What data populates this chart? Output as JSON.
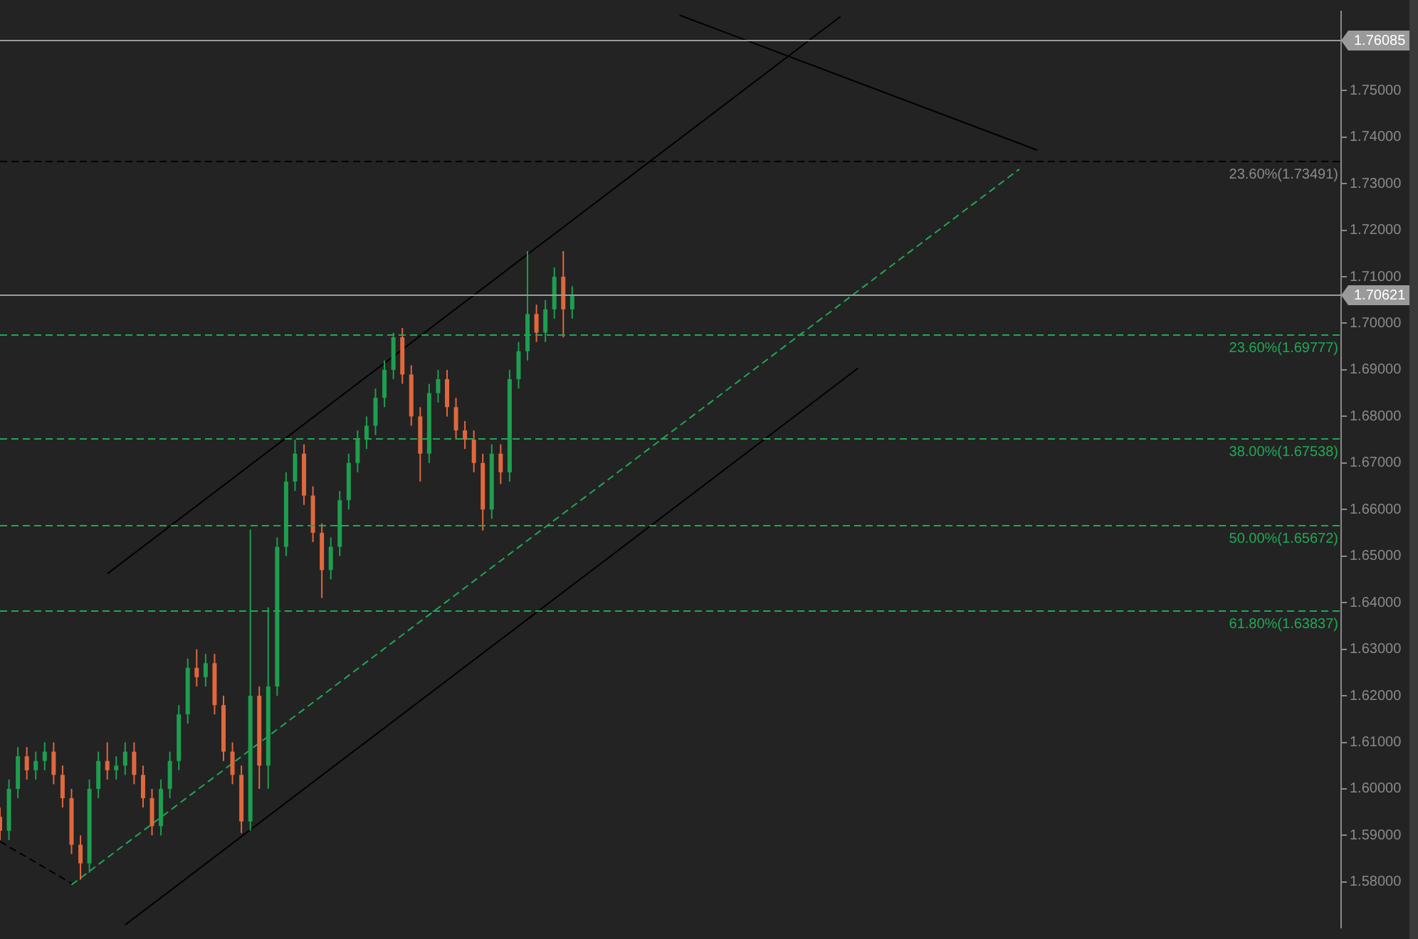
{
  "chart_data": {
    "type": "candlestick",
    "categories": [
      null,
      null,
      null,
      null,
      null,
      null,
      null,
      null,
      null,
      null,
      null,
      null,
      null,
      null,
      null,
      null,
      null,
      null,
      null,
      null,
      null,
      null,
      null,
      null,
      null,
      null,
      null,
      null,
      null,
      null,
      null,
      null,
      null,
      null,
      null,
      null,
      null,
      null,
      null,
      null,
      null,
      null,
      null,
      null,
      null,
      null,
      null,
      null,
      null,
      null,
      null,
      null,
      null,
      null,
      null,
      null,
      null,
      null,
      null,
      null,
      null,
      null,
      null,
      null,
      null,
      null,
      null,
      null,
      null,
      null,
      null,
      null,
      null,
      null,
      null,
      null,
      null,
      null,
      null,
      null,
      null,
      null,
      null,
      null,
      null,
      null,
      null,
      null,
      null,
      null,
      null,
      null,
      null,
      null,
      null,
      null,
      null,
      null,
      null,
      null,
      null,
      null,
      null,
      null,
      null,
      null,
      null,
      null,
      null,
      null,
      null,
      null,
      null,
      null,
      null,
      null,
      null,
      null,
      null,
      null,
      null,
      null,
      null,
      null,
      null,
      null,
      null,
      null,
      null,
      null,
      null,
      null,
      null,
      null,
      null,
      null,
      null,
      null,
      null,
      null,
      null,
      null,
      null,
      null,
      null,
      null,
      null,
      null,
      null,
      null,
      null
    ],
    "ohlc": [
      [
        1.594,
        1.596,
        1.589,
        1.591
      ],
      [
        1.591,
        1.602,
        1.589,
        1.6
      ],
      [
        1.6,
        1.609,
        1.598,
        1.607
      ],
      [
        1.607,
        1.609,
        1.602,
        1.604
      ],
      [
        1.604,
        1.608,
        1.602,
        1.606
      ],
      [
        1.606,
        1.61,
        1.604,
        1.608
      ],
      [
        1.608,
        1.61,
        1.601,
        1.603
      ],
      [
        1.603,
        1.605,
        1.596,
        1.598
      ],
      [
        1.598,
        1.6,
        1.586,
        1.588
      ],
      [
        1.588,
        1.59,
        1.5805,
        1.584
      ],
      [
        1.584,
        1.602,
        1.582,
        1.6
      ],
      [
        1.6,
        1.608,
        1.598,
        1.606
      ],
      [
        1.606,
        1.61,
        1.602,
        1.604
      ],
      [
        1.604,
        1.607,
        1.602,
        1.605
      ],
      [
        1.605,
        1.61,
        1.603,
        1.608
      ],
      [
        1.608,
        1.61,
        1.601,
        1.603
      ],
      [
        1.603,
        1.605,
        1.596,
        1.598
      ],
      [
        1.598,
        1.6,
        1.59,
        1.592
      ],
      [
        1.592,
        1.602,
        1.59,
        1.6
      ],
      [
        1.6,
        1.608,
        1.598,
        1.606
      ],
      [
        1.606,
        1.618,
        1.604,
        1.616
      ],
      [
        1.616,
        1.628,
        1.614,
        1.626
      ],
      [
        1.626,
        1.63,
        1.622,
        1.624
      ],
      [
        1.624,
        1.629,
        1.622,
        1.627
      ],
      [
        1.627,
        1.629,
        1.616,
        1.618
      ],
      [
        1.618,
        1.62,
        1.606,
        1.608
      ],
      [
        1.608,
        1.61,
        1.601,
        1.603
      ],
      [
        1.603,
        1.605,
        1.5905,
        1.593
      ],
      [
        1.593,
        1.6557,
        1.591,
        1.62
      ],
      [
        1.62,
        1.622,
        1.6,
        1.605
      ],
      [
        1.605,
        1.639,
        1.6,
        1.622
      ],
      [
        1.622,
        1.654,
        1.62,
        1.652
      ],
      [
        1.652,
        1.668,
        1.65,
        1.666
      ],
      [
        1.666,
        1.675,
        1.664,
        1.672
      ],
      [
        1.672,
        1.674,
        1.661,
        1.663
      ],
      [
        1.663,
        1.665,
        1.653,
        1.655
      ],
      [
        1.655,
        1.657,
        1.641,
        1.647
      ],
      [
        1.647,
        1.654,
        1.645,
        1.652
      ],
      [
        1.652,
        1.664,
        1.65,
        1.662
      ],
      [
        1.662,
        1.672,
        1.66,
        1.67
      ],
      [
        1.67,
        1.677,
        1.668,
        1.675
      ],
      [
        1.675,
        1.68,
        1.673,
        1.678
      ],
      [
        1.678,
        1.686,
        1.676,
        1.684
      ],
      [
        1.684,
        1.692,
        1.682,
        1.69
      ],
      [
        1.69,
        1.698,
        1.688,
        1.697
      ],
      [
        1.697,
        1.699,
        1.687,
        1.689
      ],
      [
        1.689,
        1.691,
        1.678,
        1.68
      ],
      [
        1.68,
        1.682,
        1.666,
        1.672
      ],
      [
        1.672,
        1.687,
        1.67,
        1.685
      ],
      [
        1.685,
        1.69,
        1.683,
        1.688
      ],
      [
        1.688,
        1.69,
        1.68,
        1.682
      ],
      [
        1.682,
        1.684,
        1.675,
        1.677
      ],
      [
        1.677,
        1.679,
        1.673,
        1.675
      ],
      [
        1.675,
        1.677,
        1.668,
        1.67
      ],
      [
        1.67,
        1.672,
        1.6555,
        1.66
      ],
      [
        1.66,
        1.674,
        1.658,
        1.672
      ],
      [
        1.672,
        1.674,
        1.6655,
        1.668
      ],
      [
        1.668,
        1.69,
        1.666,
        1.688
      ],
      [
        1.688,
        1.696,
        1.686,
        1.694
      ],
      [
        1.694,
        1.7155,
        1.692,
        1.702
      ],
      [
        1.702,
        1.704,
        1.696,
        1.698
      ],
      [
        1.698,
        1.705,
        1.696,
        1.703
      ],
      [
        1.703,
        1.712,
        1.701,
        1.71
      ],
      [
        1.71,
        1.7155,
        1.697,
        1.703
      ],
      [
        1.703,
        1.708,
        1.701,
        1.7062
      ],
      null,
      null,
      null,
      null,
      null,
      null,
      null,
      null,
      null,
      null,
      null,
      null,
      null,
      null,
      null,
      null,
      null,
      null,
      null,
      null,
      null,
      null,
      null,
      null,
      null,
      null,
      null,
      null,
      null,
      null,
      null,
      null,
      null,
      null,
      null,
      null,
      null,
      null,
      null,
      null,
      null,
      null,
      null,
      null,
      null,
      null,
      null,
      null,
      null,
      null,
      null,
      null,
      null,
      null,
      null,
      null,
      null,
      null,
      null,
      null,
      null,
      null,
      null,
      null,
      null,
      null,
      null,
      null,
      null,
      null,
      null,
      null,
      null,
      null,
      null,
      null,
      null,
      null,
      null,
      null,
      null,
      null,
      null,
      null,
      null,
      null
    ],
    "colors": [
      "#e0683c",
      "#1e9e4f",
      "#1e9e4f",
      "#e0683c",
      "#1e9e4f",
      "#1e9e4f",
      "#e0683c",
      "#e0683c",
      "#e0683c",
      "#e0683c",
      "#1e9e4f",
      "#1e9e4f",
      "#e0683c",
      "#1e9e4f",
      "#1e9e4f",
      "#e0683c",
      "#e0683c",
      "#e0683c",
      "#1e9e4f",
      "#1e9e4f",
      "#1e9e4f",
      "#1e9e4f",
      "#e0683c",
      "#1e9e4f",
      "#e0683c",
      "#e0683c",
      "#e0683c",
      "#e0683c",
      "#1e9e4f",
      "#e0683c",
      "#1e9e4f",
      "#1e9e4f",
      "#1e9e4f",
      "#1e9e4f",
      "#e0683c",
      "#e0683c",
      "#e0683c",
      "#1e9e4f",
      "#1e9e4f",
      "#1e9e4f",
      "#1e9e4f",
      "#1e9e4f",
      "#1e9e4f",
      "#1e9e4f",
      "#1e9e4f",
      "#e0683c",
      "#e0683c",
      "#e0683c",
      "#1e9e4f",
      "#1e9e4f",
      "#e0683c",
      "#e0683c",
      "#e0683c",
      "#e0683c",
      "#e0683c",
      "#1e9e4f",
      "#e0683c",
      "#1e9e4f",
      "#1e9e4f",
      "#1e9e4f",
      "#e0683c",
      "#1e9e4f",
      "#1e9e4f",
      "#e0683c",
      "#1e9e4f",
      null,
      null,
      null,
      null,
      null,
      null,
      null,
      null,
      null,
      null,
      null,
      null,
      null,
      null,
      null,
      null,
      null,
      null,
      null,
      null,
      null,
      null,
      null,
      null,
      null,
      null,
      null,
      null,
      null,
      null,
      null,
      null,
      null,
      null,
      null,
      null,
      null,
      null,
      null,
      null,
      null,
      null,
      null,
      null,
      null,
      null,
      null,
      null,
      null,
      null,
      null,
      null,
      null,
      null,
      null,
      null,
      null,
      null,
      null,
      null,
      null,
      null,
      null,
      null,
      null,
      null,
      null,
      null,
      null,
      null,
      null,
      null,
      null,
      null,
      null,
      null,
      null,
      null,
      null,
      null,
      null,
      null,
      null,
      null,
      null,
      null
    ],
    "series": [
      {
        "type": "line",
        "color": "#000000",
        "line_style": "solid",
        "values": [
          null,
          null,
          null,
          null,
          null,
          null,
          null,
          null,
          null,
          null,
          null,
          null,
          1.6462,
          null,
          null,
          null,
          null,
          null,
          null,
          null,
          null,
          null,
          null,
          null,
          null,
          null,
          null,
          null,
          null,
          null,
          null,
          null,
          null,
          null,
          null,
          null,
          null,
          null,
          null,
          null,
          null,
          null,
          null,
          null,
          null,
          null,
          null,
          null,
          null,
          null,
          null,
          null,
          null,
          null,
          null,
          null,
          null,
          null,
          null,
          null,
          null,
          null,
          null,
          null,
          null,
          null,
          null,
          null,
          null,
          null,
          null,
          null,
          null,
          null,
          null,
          null,
          null,
          null,
          null,
          null,
          null,
          null,
          null,
          null,
          null,
          null,
          null,
          null,
          null,
          null,
          null,
          null,
          null,
          null,
          1.7659,
          null,
          null,
          null,
          null,
          null,
          null,
          null,
          null,
          null,
          null,
          null,
          null,
          null,
          null,
          null,
          null,
          null,
          null,
          null,
          null,
          null,
          null,
          null,
          null,
          null,
          null,
          null,
          null,
          null,
          null,
          null,
          null,
          null,
          null,
          null,
          null,
          null,
          null,
          null,
          null,
          null,
          null,
          null,
          null,
          null,
          null,
          null,
          null,
          null,
          null,
          null,
          null,
          null,
          null,
          null,
          null
        ]
      },
      {
        "type": "line",
        "color": "#000000",
        "line_style": "solid",
        "values": [
          null,
          null,
          null,
          null,
          null,
          null,
          null,
          null,
          null,
          null,
          null,
          null,
          null,
          null,
          1.5708,
          null,
          null,
          null,
          null,
          null,
          null,
          null,
          null,
          null,
          null,
          null,
          null,
          null,
          null,
          null,
          null,
          null,
          null,
          null,
          null,
          null,
          null,
          null,
          null,
          null,
          null,
          null,
          null,
          null,
          null,
          null,
          null,
          null,
          null,
          null,
          null,
          null,
          null,
          null,
          null,
          null,
          null,
          null,
          null,
          null,
          null,
          null,
          null,
          null,
          null,
          null,
          null,
          null,
          null,
          null,
          null,
          null,
          null,
          null,
          null,
          null,
          null,
          null,
          null,
          null,
          null,
          null,
          null,
          null,
          null,
          null,
          null,
          null,
          null,
          null,
          null,
          null,
          null,
          null,
          null,
          null,
          1.6904,
          null,
          null,
          null,
          null,
          null,
          null,
          null,
          null,
          null,
          null,
          null,
          null,
          null,
          null,
          null,
          null,
          null,
          null,
          null,
          null,
          null,
          null,
          null,
          null,
          null,
          null,
          null,
          null,
          null,
          null,
          null,
          null,
          null,
          null,
          null,
          null,
          null,
          null,
          null,
          null,
          null,
          null,
          null,
          null,
          null,
          null,
          null,
          null,
          null,
          null,
          null,
          null,
          null,
          null
        ]
      },
      {
        "type": "line",
        "color": "#1fa855",
        "line_style": "dashed",
        "values": [
          null,
          null,
          null,
          null,
          null,
          null,
          null,
          null,
          1.5794,
          null,
          null,
          null,
          null,
          null,
          null,
          null,
          null,
          null,
          null,
          null,
          null,
          null,
          null,
          null,
          null,
          null,
          null,
          null,
          null,
          null,
          null,
          null,
          null,
          null,
          null,
          null,
          null,
          null,
          null,
          null,
          null,
          null,
          null,
          null,
          null,
          null,
          null,
          null,
          null,
          null,
          null,
          null,
          null,
          null,
          null,
          null,
          null,
          null,
          null,
          null,
          null,
          null,
          null,
          null,
          null,
          null,
          null,
          null,
          null,
          null,
          null,
          null,
          null,
          null,
          null,
          null,
          null,
          null,
          null,
          null,
          null,
          null,
          null,
          null,
          null,
          null,
          null,
          null,
          null,
          null,
          null,
          null,
          null,
          null,
          null,
          null,
          null,
          null,
          null,
          null,
          null,
          null,
          null,
          null,
          null,
          null,
          null,
          null,
          null,
          null,
          null,
          null,
          null,
          null,
          1.7331,
          null,
          null,
          null,
          null,
          null,
          null,
          null,
          null,
          null,
          null,
          null,
          null,
          null,
          null,
          null,
          null,
          null,
          null,
          null,
          null,
          null,
          null,
          null,
          null,
          null,
          null,
          null,
          null,
          null,
          null,
          null,
          null,
          null,
          null,
          null,
          null
        ]
      },
      {
        "type": "line",
        "color": "#000000",
        "line_style": "solid",
        "values": [
          null,
          null,
          null,
          null,
          null,
          null,
          null,
          null,
          null,
          null,
          null,
          null,
          null,
          null,
          null,
          null,
          null,
          null,
          null,
          null,
          null,
          null,
          null,
          null,
          null,
          null,
          null,
          null,
          null,
          null,
          null,
          null,
          null,
          null,
          null,
          null,
          null,
          null,
          null,
          null,
          null,
          null,
          null,
          null,
          null,
          null,
          null,
          null,
          null,
          null,
          null,
          null,
          null,
          null,
          null,
          null,
          null,
          null,
          null,
          null,
          null,
          null,
          null,
          null,
          null,
          null,
          null,
          null,
          null,
          null,
          null,
          null,
          null,
          null,
          null,
          null,
          1.7662,
          null,
          null,
          null,
          null,
          null,
          null,
          null,
          null,
          null,
          null,
          null,
          null,
          null,
          null,
          null,
          null,
          null,
          null,
          null,
          null,
          null,
          null,
          null,
          null,
          null,
          null,
          null,
          null,
          null,
          null,
          null,
          null,
          null,
          null,
          null,
          null,
          null,
          null,
          null,
          1.7372,
          null,
          null,
          null,
          null,
          null,
          null,
          null,
          null,
          null,
          null,
          null,
          null,
          null,
          null,
          null,
          null,
          null,
          null,
          null,
          null,
          null,
          null,
          null,
          null,
          null,
          null,
          null,
          null,
          null,
          null,
          null,
          null,
          null,
          null
        ]
      },
      {
        "type": "line",
        "color": "#000000",
        "line_style": "dashed",
        "values": [
          1.5887,
          null,
          null,
          null,
          null,
          null,
          null,
          null,
          1.5797,
          null,
          null,
          null,
          null,
          null,
          null,
          null,
          null,
          null,
          null,
          null,
          null,
          null,
          null,
          null,
          null,
          null,
          null,
          null,
          null,
          null,
          null,
          null,
          null,
          null,
          null,
          null,
          null,
          null,
          null,
          null,
          null,
          null,
          null,
          null,
          null,
          null,
          null,
          null,
          null,
          null,
          null,
          null,
          null,
          null,
          null,
          null,
          null,
          null,
          null,
          null,
          null,
          null,
          null,
          null,
          null,
          null,
          null,
          null,
          null,
          null,
          null,
          null,
          null,
          null,
          null,
          null,
          null,
          null,
          null,
          null,
          null,
          null,
          null,
          null,
          null,
          null,
          null,
          null,
          null,
          null,
          null,
          null,
          null,
          null,
          null,
          null,
          null,
          null,
          null,
          null,
          null,
          null,
          null,
          null,
          null,
          null,
          null,
          null,
          null,
          null,
          null,
          null,
          null,
          null,
          null,
          null,
          null,
          null,
          null,
          null,
          null,
          null,
          null,
          null,
          null,
          null,
          null,
          null,
          null,
          null,
          null,
          null,
          null,
          null,
          null,
          null,
          null,
          null,
          null,
          null,
          null,
          null,
          null,
          null,
          null,
          null,
          null,
          null,
          null,
          null,
          null
        ]
      }
    ],
    "ylim": [
      1.5702,
      1.767
    ],
    "yticks": [
      {
        "value": 1.58,
        "label": "1.58000"
      },
      {
        "value": 1.59,
        "label": "1.59000"
      },
      {
        "value": 1.6,
        "label": "1.60000"
      },
      {
        "value": 1.61,
        "label": "1.61000"
      },
      {
        "value": 1.62,
        "label": "1.62000"
      },
      {
        "value": 1.63,
        "label": "1.63000"
      },
      {
        "value": 1.64,
        "label": "1.64000"
      },
      {
        "value": 1.65,
        "label": "1.65000"
      },
      {
        "value": 1.66,
        "label": "1.66000"
      },
      {
        "value": 1.67,
        "label": "1.67000"
      },
      {
        "value": 1.68,
        "label": "1.68000"
      },
      {
        "value": 1.69,
        "label": "1.69000"
      },
      {
        "value": 1.7,
        "label": "1.70000"
      },
      {
        "value": 1.71,
        "label": "1.71000"
      },
      {
        "value": 1.72,
        "label": "1.72000"
      },
      {
        "value": 1.73,
        "label": "1.73000"
      },
      {
        "value": 1.74,
        "label": "1.74000"
      },
      {
        "value": 1.75,
        "label": "1.75000"
      }
    ],
    "ref_lines": [
      {
        "axis": "y",
        "value": 1.76085,
        "label": "1.76085",
        "color": "#9a9a9a",
        "line_style": "solid"
      },
      {
        "axis": "y",
        "value": 1.70621,
        "label": "1.70621",
        "color": "#9a9a9a",
        "line_style": "solid"
      },
      {
        "axis": "y",
        "value": 1.73491,
        "label": "23.60%(1.73491)",
        "color": "#000000",
        "line_style": "dashed"
      },
      {
        "axis": "y",
        "value": 1.69777,
        "label": "23.60%(1.69777)",
        "color": "#1fa855",
        "line_style": "dashed"
      },
      {
        "axis": "y",
        "value": 1.67538,
        "label": "38.00%(1.67538)",
        "color": "#1fa855",
        "line_style": "dashed"
      },
      {
        "axis": "y",
        "value": 1.65672,
        "label": "50.00%(1.65672)",
        "color": "#1fa855",
        "line_style": "dashed"
      },
      {
        "axis": "y",
        "value": 1.63837,
        "label": "61.80%(1.63837)",
        "color": "#1fa855",
        "line_style": "dashed"
      }
    ],
    "grid": false,
    "legend": false
  }
}
